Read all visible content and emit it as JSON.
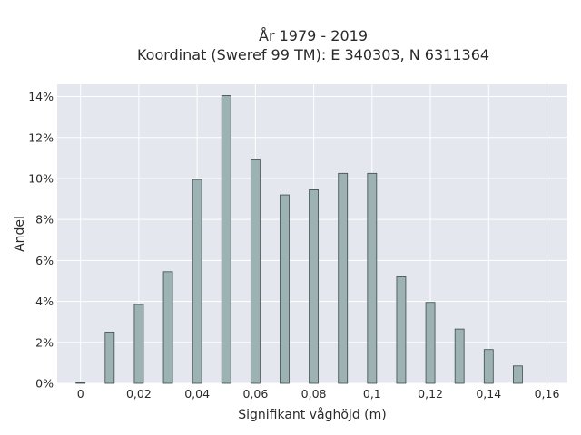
{
  "chart_data": {
    "type": "bar",
    "title_line1": "År 1979 - 2019",
    "title_line2": "Koordinat (Sweref 99 TM): E 340303, N 6311364",
    "xlabel": "Signifikant våghöjd (m)",
    "ylabel": "Andel",
    "x": [
      0,
      0.01,
      0.02,
      0.03,
      0.04,
      0.05,
      0.06,
      0.07,
      0.08,
      0.09,
      0.1,
      0.11,
      0.12,
      0.13,
      0.14,
      0.15
    ],
    "values": [
      0.04,
      2.5,
      3.85,
      5.45,
      9.95,
      14.05,
      10.95,
      9.2,
      9.45,
      10.25,
      10.25,
      5.2,
      3.95,
      2.65,
      1.65,
      0.85
    ],
    "xlim": [
      -0.008,
      0.167
    ],
    "ylim": [
      0,
      14.6
    ],
    "x_ticks": [
      {
        "value": 0,
        "label": "0"
      },
      {
        "value": 0.02,
        "label": "0,02"
      },
      {
        "value": 0.04,
        "label": "0,04"
      },
      {
        "value": 0.06,
        "label": "0,06"
      },
      {
        "value": 0.08,
        "label": "0,08"
      },
      {
        "value": 0.1,
        "label": "0,1"
      },
      {
        "value": 0.12,
        "label": "0,12"
      },
      {
        "value": 0.14,
        "label": "0,14"
      },
      {
        "value": 0.16,
        "label": "0,16"
      }
    ],
    "y_ticks": [
      {
        "value": 0,
        "label": "0%"
      },
      {
        "value": 2,
        "label": "2%"
      },
      {
        "value": 4,
        "label": "4%"
      },
      {
        "value": 6,
        "label": "6%"
      },
      {
        "value": 8,
        "label": "8%"
      },
      {
        "value": 10,
        "label": "10%"
      },
      {
        "value": 12,
        "label": "12%"
      },
      {
        "value": 14,
        "label": "14%"
      }
    ],
    "grid": true,
    "colors": {
      "background": "#e5e7ee",
      "bar_fill": "#9cb2b3",
      "bar_stroke": "#3c4a4a",
      "grid": "#ffffff"
    }
  }
}
